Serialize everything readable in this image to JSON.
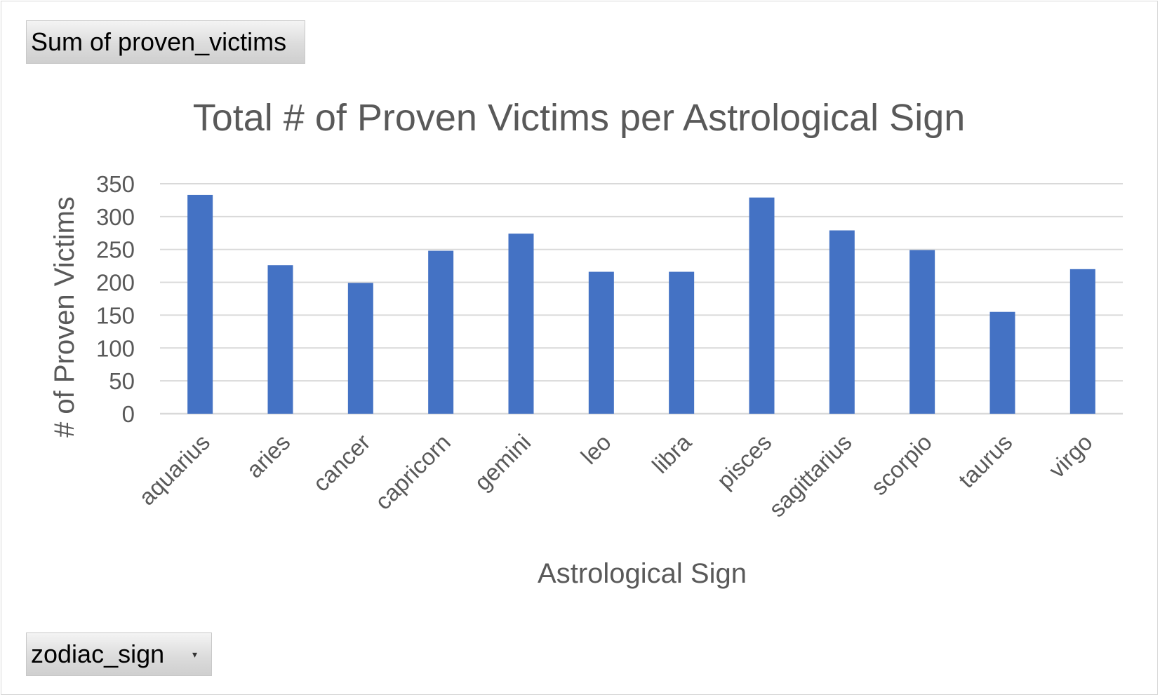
{
  "pivot": {
    "value_field_label": "Sum of proven_victims",
    "axis_field_label": "zodiac_sign",
    "axis_field_icon": "dropdown-arrow-icon"
  },
  "colors": {
    "bar": "#4472C4",
    "gridline": "#d9d9d9",
    "text": "#595959"
  },
  "chart_data": {
    "type": "bar",
    "title": "Total # of Proven Victims per Astrological Sign",
    "xlabel": "Astrological Sign",
    "ylabel": "# of Proven Victims",
    "categories": [
      "aquarius",
      "aries",
      "cancer",
      "capricorn",
      "gemini",
      "leo",
      "libra",
      "pisces",
      "sagittarius",
      "scorpio",
      "taurus",
      "virgo"
    ],
    "values": [
      333,
      226,
      199,
      248,
      274,
      216,
      216,
      329,
      279,
      249,
      155,
      220
    ],
    "ylim": [
      0,
      350
    ],
    "yticks": [
      0,
      50,
      100,
      150,
      200,
      250,
      300,
      350
    ],
    "grid": true,
    "legend": "none"
  }
}
